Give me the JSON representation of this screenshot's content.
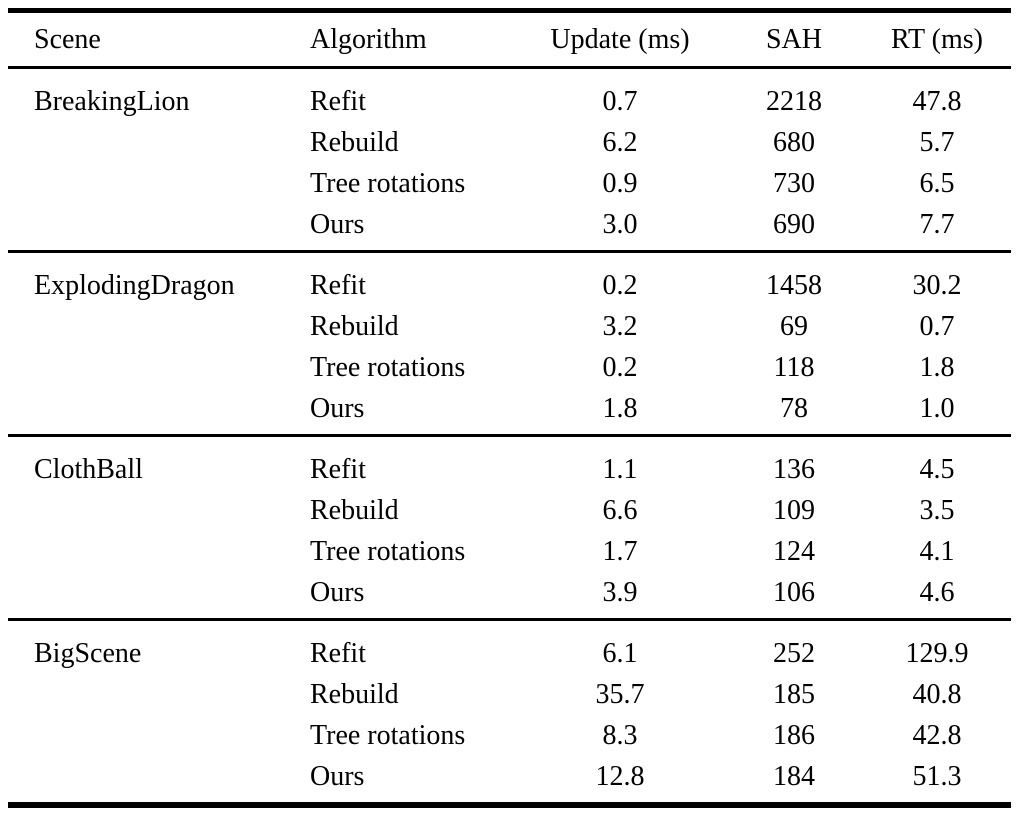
{
  "colors": {
    "background": "#ffffff",
    "text": "#000000",
    "rule": "#000000"
  },
  "table": {
    "columns": [
      "Scene",
      "Algorithm",
      "Update (ms)",
      "SAH",
      "RT (ms)"
    ],
    "groups": [
      {
        "scene": "BreakingLion",
        "rows": [
          {
            "algorithm": "Refit",
            "update": "0.7",
            "sah": "2218",
            "rt": "47.8"
          },
          {
            "algorithm": "Rebuild",
            "update": "6.2",
            "sah": "680",
            "rt": "5.7"
          },
          {
            "algorithm": "Tree rotations",
            "update": "0.9",
            "sah": "730",
            "rt": "6.5"
          },
          {
            "algorithm": "Ours",
            "update": "3.0",
            "sah": "690",
            "rt": "7.7"
          }
        ]
      },
      {
        "scene": "ExplodingDragon",
        "rows": [
          {
            "algorithm": "Refit",
            "update": "0.2",
            "sah": "1458",
            "rt": "30.2"
          },
          {
            "algorithm": "Rebuild",
            "update": "3.2",
            "sah": "69",
            "rt": "0.7"
          },
          {
            "algorithm": "Tree rotations",
            "update": "0.2",
            "sah": "118",
            "rt": "1.8"
          },
          {
            "algorithm": "Ours",
            "update": "1.8",
            "sah": "78",
            "rt": "1.0"
          }
        ]
      },
      {
        "scene": "ClothBall",
        "rows": [
          {
            "algorithm": "Refit",
            "update": "1.1",
            "sah": "136",
            "rt": "4.5"
          },
          {
            "algorithm": "Rebuild",
            "update": "6.6",
            "sah": "109",
            "rt": "3.5"
          },
          {
            "algorithm": "Tree rotations",
            "update": "1.7",
            "sah": "124",
            "rt": "4.1"
          },
          {
            "algorithm": "Ours",
            "update": "3.9",
            "sah": "106",
            "rt": "4.6"
          }
        ]
      },
      {
        "scene": "BigScene",
        "rows": [
          {
            "algorithm": "Refit",
            "update": "6.1",
            "sah": "252",
            "rt": "129.9"
          },
          {
            "algorithm": "Rebuild",
            "update": "35.7",
            "sah": "185",
            "rt": "40.8"
          },
          {
            "algorithm": "Tree rotations",
            "update": "8.3",
            "sah": "186",
            "rt": "42.8"
          },
          {
            "algorithm": "Ours",
            "update": "12.8",
            "sah": "184",
            "rt": "51.3"
          }
        ]
      }
    ]
  }
}
